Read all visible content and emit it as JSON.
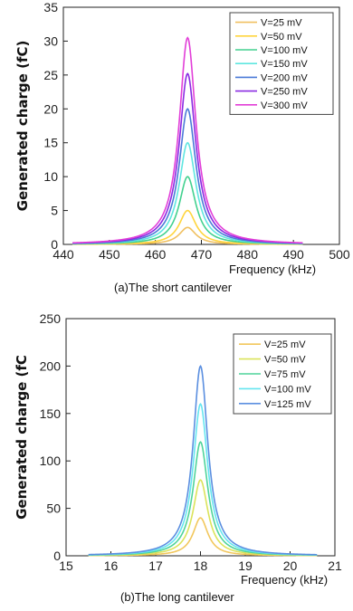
{
  "chart_data": [
    {
      "type": "line",
      "caption": "(a)The short cantilever",
      "xlabel": "Frequency (kHz)",
      "ylabel": "Generated charge (fC)",
      "xlim": [
        440,
        500
      ],
      "ylim": [
        0,
        35
      ],
      "xticks": [
        440,
        450,
        460,
        470,
        480,
        490,
        500
      ],
      "yticks": [
        0,
        5,
        10,
        15,
        20,
        25,
        30,
        35
      ],
      "grid": false,
      "legend_position": "top-right",
      "curve_shape": {
        "center": 467,
        "half_width": 2.2,
        "x_start": 442,
        "x_end": 492
      },
      "series": [
        {
          "name": "V=25 mV",
          "peak": 2.5,
          "color": "#f0c060"
        },
        {
          "name": "V=50 mV",
          "peak": 5,
          "color": "#ffd53d"
        },
        {
          "name": "V=100 mV",
          "peak": 10,
          "color": "#42d18f"
        },
        {
          "name": "V=150 mV",
          "peak": 15,
          "color": "#5fe6e0"
        },
        {
          "name": "V=200 mV",
          "peak": 20,
          "color": "#4a7ad8"
        },
        {
          "name": "V=250 mV",
          "peak": 25.2,
          "color": "#8a2be2"
        },
        {
          "name": "V=300 mV",
          "peak": 30.5,
          "color": "#e23fd8"
        }
      ]
    },
    {
      "type": "line",
      "caption": "(b)The long cantilever",
      "xlabel": "Frequency (kHz)",
      "ylabel": "Generated charge (fC",
      "xlim": [
        15,
        21
      ],
      "ylim": [
        0,
        250
      ],
      "xticks": [
        15,
        16,
        17,
        18,
        19,
        20,
        21
      ],
      "yticks": [
        0,
        50,
        100,
        150,
        200,
        250
      ],
      "grid": false,
      "legend_position": "top-right",
      "curve_shape": {
        "center": 18,
        "half_width": 0.2,
        "x_start": 15.5,
        "x_end": 20.6
      },
      "series": [
        {
          "name": "V=25 mV",
          "peak": 40,
          "color": "#f2c75c"
        },
        {
          "name": "V=50 mV",
          "peak": 80,
          "color": "#dbe35a"
        },
        {
          "name": "V=75 mV",
          "peak": 120,
          "color": "#4fd49a"
        },
        {
          "name": "V=100 mV",
          "peak": 160,
          "color": "#66e6f0"
        },
        {
          "name": "V=125 mV",
          "peak": 200,
          "color": "#5b8fe0"
        }
      ]
    }
  ]
}
